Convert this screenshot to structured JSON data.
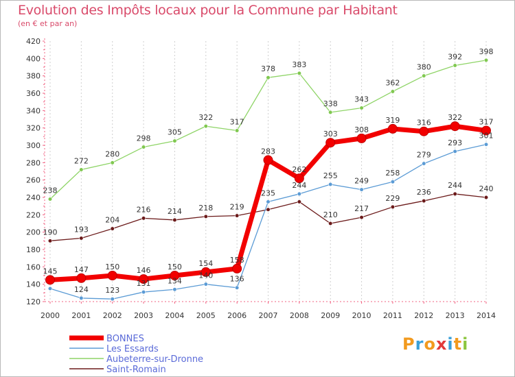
{
  "header": {
    "title": "Evolution des Impôts locaux pour la Commune par Habitant",
    "subtitle": "(en € et par an)"
  },
  "logo": {
    "text": "Proxiti",
    "letters": [
      {
        "ch": "P",
        "color": "#f29a1e"
      },
      {
        "ch": "r",
        "color": "#3aa0d8"
      },
      {
        "ch": "o",
        "color": "#f29a1e"
      },
      {
        "ch": "x",
        "color": "#e23a3a"
      },
      {
        "ch": "i",
        "color": "#3aa0d8"
      },
      {
        "ch": "t",
        "color": "#f29a1e"
      },
      {
        "ch": "i",
        "color": "#8cc63f"
      }
    ]
  },
  "chart_data": {
    "type": "line",
    "title": "Evolution des Impôts locaux pour la Commune par Habitant",
    "subtitle": "(en € et par an)",
    "x": [
      2000,
      2001,
      2002,
      2003,
      2004,
      2005,
      2006,
      2007,
      2008,
      2009,
      2010,
      2011,
      2012,
      2013,
      2014
    ],
    "xticks": [
      "2000",
      "2001",
      "2002",
      "2003",
      "2004",
      "2005",
      "2006",
      "2007",
      "2008",
      "2009",
      "2010",
      "2011",
      "2012",
      "2013",
      "2014"
    ],
    "ylim": [
      120,
      420
    ],
    "yticks": [
      120,
      140,
      160,
      180,
      200,
      220,
      240,
      260,
      280,
      300,
      320,
      340,
      360,
      380,
      400,
      420
    ],
    "grid": "vertical-dashed",
    "legend_position": "bottom-left",
    "series": [
      {
        "name": "Aubeterre-sur-Dronne",
        "color": "#8ed466",
        "marker": "#80c850",
        "width": 1.3,
        "values": [
          238,
          272,
          280,
          298,
          305,
          322,
          317,
          378,
          383,
          338,
          343,
          362,
          380,
          392,
          398
        ]
      },
      {
        "name": "Saint-Romain",
        "color": "#6b1a1a",
        "marker": "#6b1a1a",
        "width": 1.3,
        "values": [
          190,
          193,
          204,
          216,
          214,
          218,
          219,
          226,
          235,
          210,
          217,
          229,
          236,
          244,
          240
        ]
      },
      {
        "name": "Les Essards",
        "color": "#5b9bd5",
        "marker": "#5b9bd5",
        "width": 1.3,
        "values": [
          135,
          124,
          123,
          131,
          134,
          140,
          136,
          235,
          244,
          255,
          249,
          258,
          279,
          293,
          301
        ]
      },
      {
        "name": "BONNES",
        "color": "#f20000",
        "marker": "#f20000",
        "width": 7,
        "values": [
          145,
          147,
          150,
          146,
          150,
          154,
          158,
          283,
          262,
          303,
          308,
          319,
          316,
          322,
          317
        ]
      }
    ],
    "labels": {
      "Aubeterre-sur-Dronne": [
        "238",
        "272",
        "280",
        "298",
        "305",
        "322",
        "317",
        "378",
        "383",
        "338",
        "343",
        "362",
        "380",
        "392",
        "398"
      ],
      "Saint-Romain": [
        "190",
        "193",
        "204",
        "216",
        "214",
        "218",
        "219",
        "",
        "",
        "210",
        "217",
        "229",
        "236",
        "244",
        "240"
      ],
      "Les Essards": [
        "",
        "124",
        "123",
        "131",
        "134",
        "140",
        "136",
        "235",
        "244",
        "255",
        "249",
        "258",
        "279",
        "293",
        "301"
      ],
      "BONNES": [
        "145",
        "147",
        "150",
        "146",
        "150",
        "154",
        "158",
        "283",
        "262",
        "303",
        "308",
        "319",
        "316",
        "322",
        "317"
      ]
    },
    "legend": [
      {
        "name": "BONNES",
        "color": "#f20000",
        "width": 7
      },
      {
        "name": "Les Essards",
        "color": "#5b9bd5",
        "width": 1.5
      },
      {
        "name": "Aubeterre-sur-Dronne",
        "color": "#8ed466",
        "width": 1.5
      },
      {
        "name": "Saint-Romain",
        "color": "#6b1a1a",
        "width": 1.5
      }
    ]
  }
}
